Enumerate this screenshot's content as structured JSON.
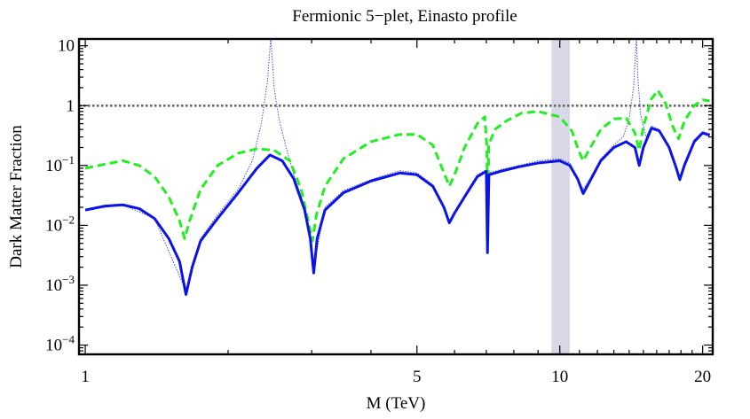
{
  "chart_data": {
    "type": "line",
    "title": "Fermionic 5−plet, Einasto profile",
    "xlabel": "M (TeV)",
    "ylabel": "Dark Matter Fraction",
    "xscale": "log",
    "yscale": "log",
    "xlim": [
      0.97,
      21
    ],
    "ylim": [
      7e-05,
      13
    ],
    "x_ticks": [
      {
        "value": 1,
        "label": "1"
      },
      {
        "value": 5,
        "label": "5"
      },
      {
        "value": 10,
        "label": "10"
      },
      {
        "value": 20,
        "label": "20"
      }
    ],
    "y_ticks": [
      {
        "value": 10,
        "base": "10",
        "exp": ""
      },
      {
        "value": 1,
        "base": "1",
        "exp": ""
      },
      {
        "value": 0.1,
        "base": "10",
        "exp": "−1"
      },
      {
        "value": 0.01,
        "base": "10",
        "exp": "−2"
      },
      {
        "value": 0.001,
        "base": "10",
        "exp": "−3"
      },
      {
        "value": 0.0001,
        "base": "10",
        "exp": "−4"
      }
    ],
    "reference_line": {
      "y": 1,
      "style": "dotted",
      "color": "#666666"
    },
    "shaded_band": {
      "x_range": [
        9.6,
        10.5
      ],
      "color": "#d8d8e8"
    },
    "series": [
      {
        "name": "thick-blue-solid",
        "color": "#0a14e6",
        "style": "solid",
        "points": [
          [
            1,
            0.018
          ],
          [
            1.1,
            0.021
          ],
          [
            1.2,
            0.022
          ],
          [
            1.3,
            0.019
          ],
          [
            1.4,
            0.013
          ],
          [
            1.5,
            0.006
          ],
          [
            1.58,
            0.0025
          ],
          [
            1.63,
            0.0007
          ],
          [
            1.68,
            0.002
          ],
          [
            1.75,
            0.0055
          ],
          [
            1.9,
            0.013
          ],
          [
            2.1,
            0.035
          ],
          [
            2.3,
            0.09
          ],
          [
            2.45,
            0.15
          ],
          [
            2.6,
            0.12
          ],
          [
            2.75,
            0.06
          ],
          [
            2.9,
            0.018
          ],
          [
            2.98,
            0.006
          ],
          [
            3.03,
            0.0016
          ],
          [
            3.08,
            0.006
          ],
          [
            3.2,
            0.018
          ],
          [
            3.5,
            0.035
          ],
          [
            4.0,
            0.055
          ],
          [
            4.6,
            0.075
          ],
          [
            5.0,
            0.07
          ],
          [
            5.4,
            0.045
          ],
          [
            5.7,
            0.02
          ],
          [
            5.85,
            0.011
          ],
          [
            6.0,
            0.016
          ],
          [
            6.3,
            0.03
          ],
          [
            6.7,
            0.065
          ],
          [
            7.0,
            0.08
          ],
          [
            7.04,
            0.0035
          ],
          [
            7.09,
            0.07
          ],
          [
            7.5,
            0.08
          ],
          [
            8.2,
            0.095
          ],
          [
            9.0,
            0.11
          ],
          [
            10.0,
            0.12
          ],
          [
            10.5,
            0.1
          ],
          [
            10.9,
            0.06
          ],
          [
            11.2,
            0.034
          ],
          [
            11.5,
            0.05
          ],
          [
            12.2,
            0.12
          ],
          [
            13.0,
            0.2
          ],
          [
            13.8,
            0.25
          ],
          [
            14.4,
            0.2
          ],
          [
            14.7,
            0.1
          ],
          [
            15.0,
            0.2
          ],
          [
            15.6,
            0.42
          ],
          [
            16.2,
            0.38
          ],
          [
            17.0,
            0.2
          ],
          [
            17.6,
            0.09
          ],
          [
            17.9,
            0.058
          ],
          [
            18.3,
            0.1
          ],
          [
            19.2,
            0.25
          ],
          [
            20.0,
            0.35
          ],
          [
            20.7,
            0.32
          ]
        ]
      },
      {
        "name": "thick-green-dashed",
        "color": "#22ee22",
        "style": "dashed",
        "points": [
          [
            1,
            0.09
          ],
          [
            1.1,
            0.105
          ],
          [
            1.2,
            0.12
          ],
          [
            1.3,
            0.1
          ],
          [
            1.4,
            0.065
          ],
          [
            1.5,
            0.03
          ],
          [
            1.58,
            0.012
          ],
          [
            1.62,
            0.006
          ],
          [
            1.66,
            0.012
          ],
          [
            1.75,
            0.04
          ],
          [
            1.9,
            0.1
          ],
          [
            2.1,
            0.16
          ],
          [
            2.3,
            0.19
          ],
          [
            2.5,
            0.18
          ],
          [
            2.7,
            0.12
          ],
          [
            2.85,
            0.04
          ],
          [
            2.95,
            0.012
          ],
          [
            3.01,
            0.0055
          ],
          [
            3.07,
            0.015
          ],
          [
            3.2,
            0.045
          ],
          [
            3.5,
            0.13
          ],
          [
            4.0,
            0.25
          ],
          [
            4.6,
            0.33
          ],
          [
            5.0,
            0.33
          ],
          [
            5.4,
            0.22
          ],
          [
            5.65,
            0.09
          ],
          [
            5.85,
            0.045
          ],
          [
            6.0,
            0.07
          ],
          [
            6.3,
            0.2
          ],
          [
            6.7,
            0.5
          ],
          [
            6.95,
            0.65
          ],
          [
            7.02,
            0.2
          ],
          [
            7.05,
            0.006
          ],
          [
            7.08,
            0.22
          ],
          [
            7.3,
            0.4
          ],
          [
            7.7,
            0.55
          ],
          [
            8.3,
            0.75
          ],
          [
            9.0,
            0.8
          ],
          [
            10.0,
            0.65
          ],
          [
            10.6,
            0.38
          ],
          [
            10.95,
            0.18
          ],
          [
            11.2,
            0.12
          ],
          [
            11.6,
            0.2
          ],
          [
            12.2,
            0.4
          ],
          [
            13.0,
            0.6
          ],
          [
            13.8,
            0.62
          ],
          [
            14.4,
            0.35
          ],
          [
            14.7,
            0.18
          ],
          [
            15.0,
            0.45
          ],
          [
            15.6,
            1.3
          ],
          [
            16.1,
            1.8
          ],
          [
            16.7,
            1.1
          ],
          [
            17.3,
            0.45
          ],
          [
            17.8,
            0.28
          ],
          [
            18.3,
            0.55
          ],
          [
            19.2,
            1.0
          ],
          [
            20.0,
            1.25
          ],
          [
            20.7,
            1.2
          ]
        ]
      },
      {
        "name": "thin-blue-dotted",
        "color": "#4a4ae8",
        "style": "dotted",
        "points": [
          [
            1,
            0.018
          ],
          [
            1.2,
            0.022
          ],
          [
            1.4,
            0.013
          ],
          [
            1.63,
            0.0008
          ],
          [
            1.75,
            0.006
          ],
          [
            1.9,
            0.015
          ],
          [
            2.1,
            0.04
          ],
          [
            2.25,
            0.12
          ],
          [
            2.35,
            0.5
          ],
          [
            2.42,
            2.5
          ],
          [
            2.46,
            14
          ],
          [
            2.5,
            2.0
          ],
          [
            2.56,
            0.6
          ],
          [
            2.65,
            0.2
          ],
          [
            2.75,
            0.07
          ],
          [
            2.9,
            0.02
          ],
          [
            3.03,
            0.002
          ],
          [
            3.2,
            0.02
          ],
          [
            3.5,
            0.038
          ],
          [
            4.0,
            0.058
          ],
          [
            4.6,
            0.082
          ],
          [
            5.0,
            0.075
          ],
          [
            5.4,
            0.048
          ],
          [
            5.85,
            0.012
          ],
          [
            6.3,
            0.032
          ],
          [
            6.7,
            0.07
          ],
          [
            7.0,
            0.085
          ],
          [
            7.04,
            0.004
          ],
          [
            7.09,
            0.075
          ],
          [
            7.5,
            0.085
          ],
          [
            8.2,
            0.1
          ],
          [
            9.0,
            0.12
          ],
          [
            10.0,
            0.13
          ],
          [
            10.5,
            0.11
          ],
          [
            11.2,
            0.04
          ],
          [
            11.5,
            0.055
          ],
          [
            12.2,
            0.13
          ],
          [
            13.0,
            0.22
          ],
          [
            13.6,
            0.3
          ],
          [
            14.0,
            0.6
          ],
          [
            14.3,
            2.0
          ],
          [
            14.5,
            14
          ],
          [
            14.6,
            3.0
          ],
          [
            14.8,
            0.7
          ],
          [
            15.2,
            0.3
          ],
          [
            15.6,
            0.46
          ],
          [
            16.2,
            0.4
          ],
          [
            17.0,
            0.21
          ],
          [
            17.9,
            0.065
          ],
          [
            18.3,
            0.11
          ],
          [
            19.2,
            0.27
          ],
          [
            20.0,
            0.37
          ],
          [
            20.7,
            0.34
          ]
        ]
      }
    ]
  }
}
